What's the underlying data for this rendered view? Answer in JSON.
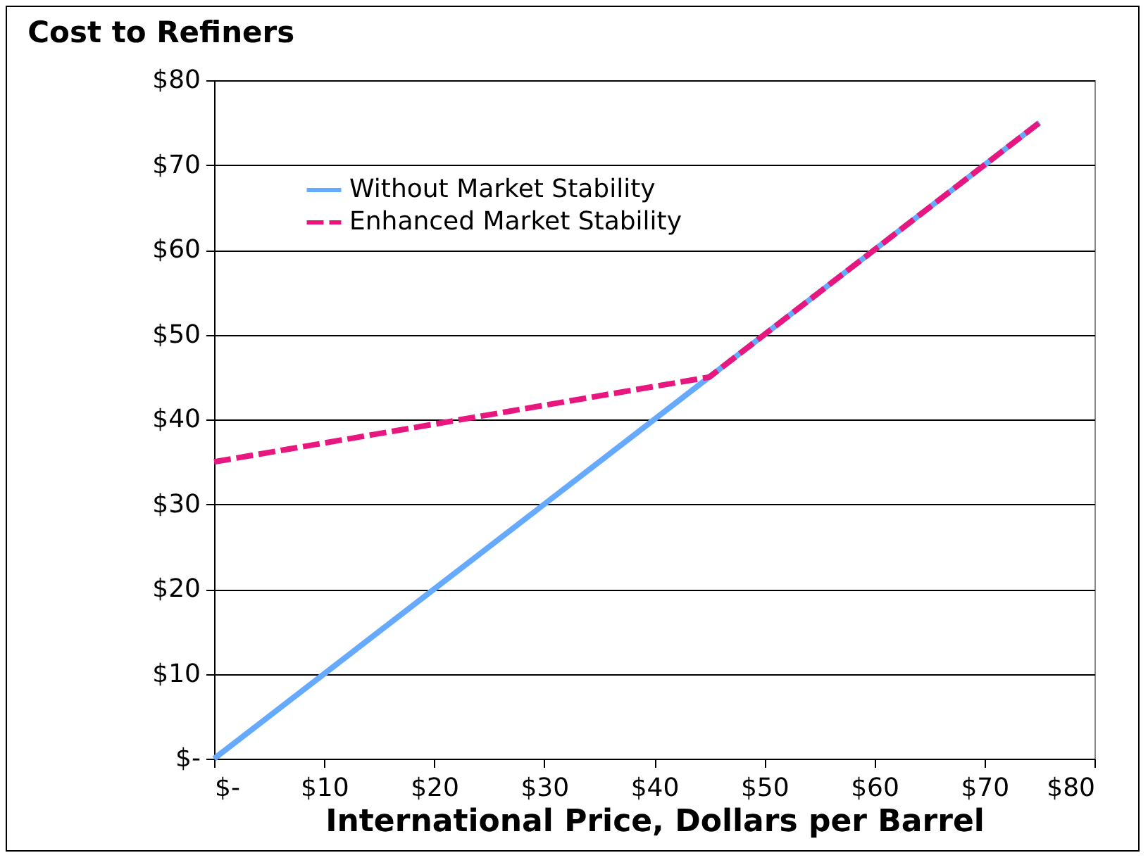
{
  "chart_data": {
    "type": "line",
    "title": "Cost to Refiners",
    "xlabel": "International Price, Dollars per Barrel",
    "xlim": [
      0,
      80
    ],
    "xticks": [
      {
        "value": 0,
        "label": "$-"
      },
      {
        "value": 10,
        "label": "$10"
      },
      {
        "value": 20,
        "label": "$20"
      },
      {
        "value": 30,
        "label": "$30"
      },
      {
        "value": 40,
        "label": "$40"
      },
      {
        "value": 50,
        "label": "$50"
      },
      {
        "value": 60,
        "label": "$60"
      },
      {
        "value": 70,
        "label": "$70"
      },
      {
        "value": 80,
        "label": "$80"
      }
    ],
    "ylim": [
      0,
      80
    ],
    "yticks": [
      {
        "value": 0,
        "label": "$-"
      },
      {
        "value": 10,
        "label": "$10"
      },
      {
        "value": 20,
        "label": "$20"
      },
      {
        "value": 30,
        "label": "$30"
      },
      {
        "value": 40,
        "label": "$40"
      },
      {
        "value": 50,
        "label": "$50"
      },
      {
        "value": 60,
        "label": "$60"
      },
      {
        "value": 70,
        "label": "$70"
      },
      {
        "value": 80,
        "label": "$80"
      }
    ],
    "grid": "y",
    "legend": "top left",
    "series": [
      {
        "name": "Without Market Stability",
        "color": "#66aaff",
        "line_style": "solid",
        "x": [
          0,
          75
        ],
        "values": [
          0,
          75
        ]
      },
      {
        "name": "Enhanced Market Stability",
        "color": "#e8177f",
        "line_style": "dashed",
        "x": [
          0,
          45,
          75
        ],
        "values": [
          35,
          45,
          75
        ]
      }
    ]
  }
}
